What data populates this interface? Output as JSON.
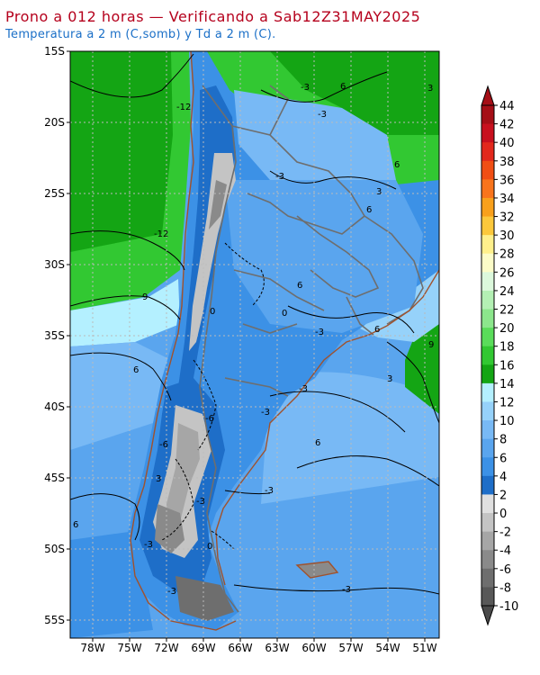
{
  "header": {
    "title": "Prono a 012 horas — Verificando a Sab12Z31MAY2025",
    "subtitle": "Temperatura a 2 m (C,somb) y Td a 2 m (C)."
  },
  "map": {
    "lat_labels": [
      "15S",
      "20S",
      "25S",
      "30S",
      "35S",
      "40S",
      "45S",
      "50S",
      "55S"
    ],
    "lon_labels": [
      "78W",
      "75W",
      "72W",
      "69W",
      "66W",
      "63W",
      "60W",
      "57W",
      "54W",
      "51W"
    ],
    "lat_range": [
      -56,
      -15
    ],
    "lon_range": [
      -80,
      -50
    ],
    "contour_labels": [
      "-3",
      "6",
      "3",
      "-3",
      "6",
      "-12",
      "-3",
      "3",
      "6",
      "-12",
      "9",
      "0",
      "0",
      "-3",
      "6",
      "6",
      "-3",
      "3",
      "9",
      "-6",
      "-3",
      "6",
      "-6",
      "-3",
      "3",
      "-3",
      "6",
      "-3",
      "0",
      "-3",
      "6",
      "-3"
    ],
    "colors": {
      "land_brown": "#a0522d",
      "border_gray": "#6e6e6e",
      "grid": "#bbbbbb"
    }
  },
  "colorbar": {
    "labels": [
      "44",
      "42",
      "40",
      "38",
      "36",
      "34",
      "32",
      "30",
      "28",
      "26",
      "24",
      "22",
      "20",
      "18",
      "16",
      "14",
      "12",
      "10",
      "8",
      "6",
      "4",
      "2",
      "0",
      "-2",
      "-4",
      "-6",
      "-8",
      "-10"
    ],
    "colors": [
      "#a50e16",
      "#c8101e",
      "#e2281c",
      "#f04e14",
      "#f8741c",
      "#f8a01c",
      "#fcc83c",
      "#fff08c",
      "#fcfcc8",
      "#dcf8dc",
      "#b4f0b4",
      "#8ce68c",
      "#5adc5a",
      "#32c832",
      "#14a514",
      "#b4f0ff",
      "#96d2fa",
      "#78b9f5",
      "#5aa5ee",
      "#3c91e6",
      "#1e6ec8",
      "#e0e0e0",
      "#c4c4c4",
      "#a6a6a6",
      "#8a8a8a",
      "#6e6e6e",
      "#585858"
    ],
    "top_color": "#a50e16",
    "bottom_color": "#4a4a4a"
  }
}
